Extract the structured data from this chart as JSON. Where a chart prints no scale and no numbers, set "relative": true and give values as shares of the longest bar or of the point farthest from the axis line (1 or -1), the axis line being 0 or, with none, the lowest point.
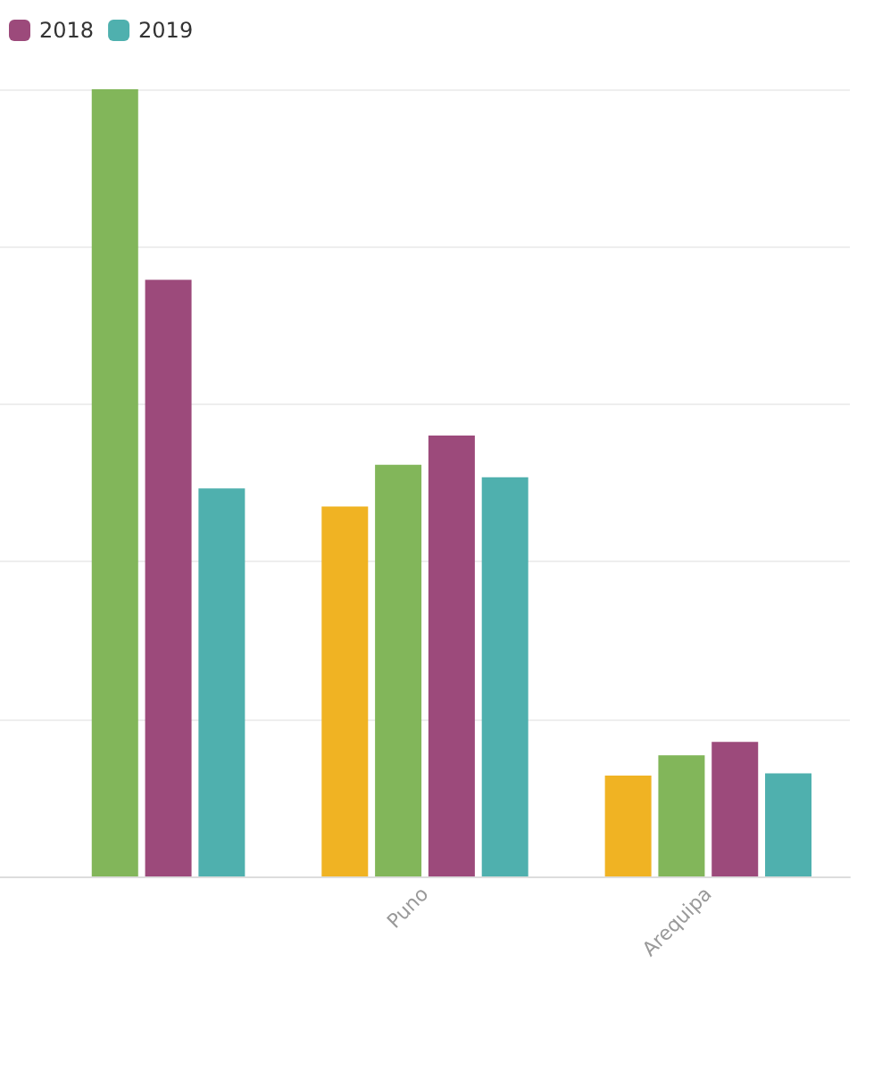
{
  "chart_data": {
    "type": "bar",
    "relative": true,
    "categories": [
      null,
      "Puno",
      "Arequipa"
    ],
    "series": [
      {
        "color": "#f0b323",
        "values": [
          null,
          0.47,
          0.128
        ]
      },
      {
        "color": "#82b65a",
        "values": [
          1.0,
          0.523,
          0.154
        ]
      },
      {
        "name": "2018",
        "color": "#9c4a7b",
        "values": [
          0.758,
          0.56,
          0.171
        ]
      },
      {
        "name": "2019",
        "color": "#4fb0ae",
        "values": [
          0.493,
          0.507,
          0.131
        ]
      }
    ],
    "grid": "y",
    "legend": "top left"
  }
}
